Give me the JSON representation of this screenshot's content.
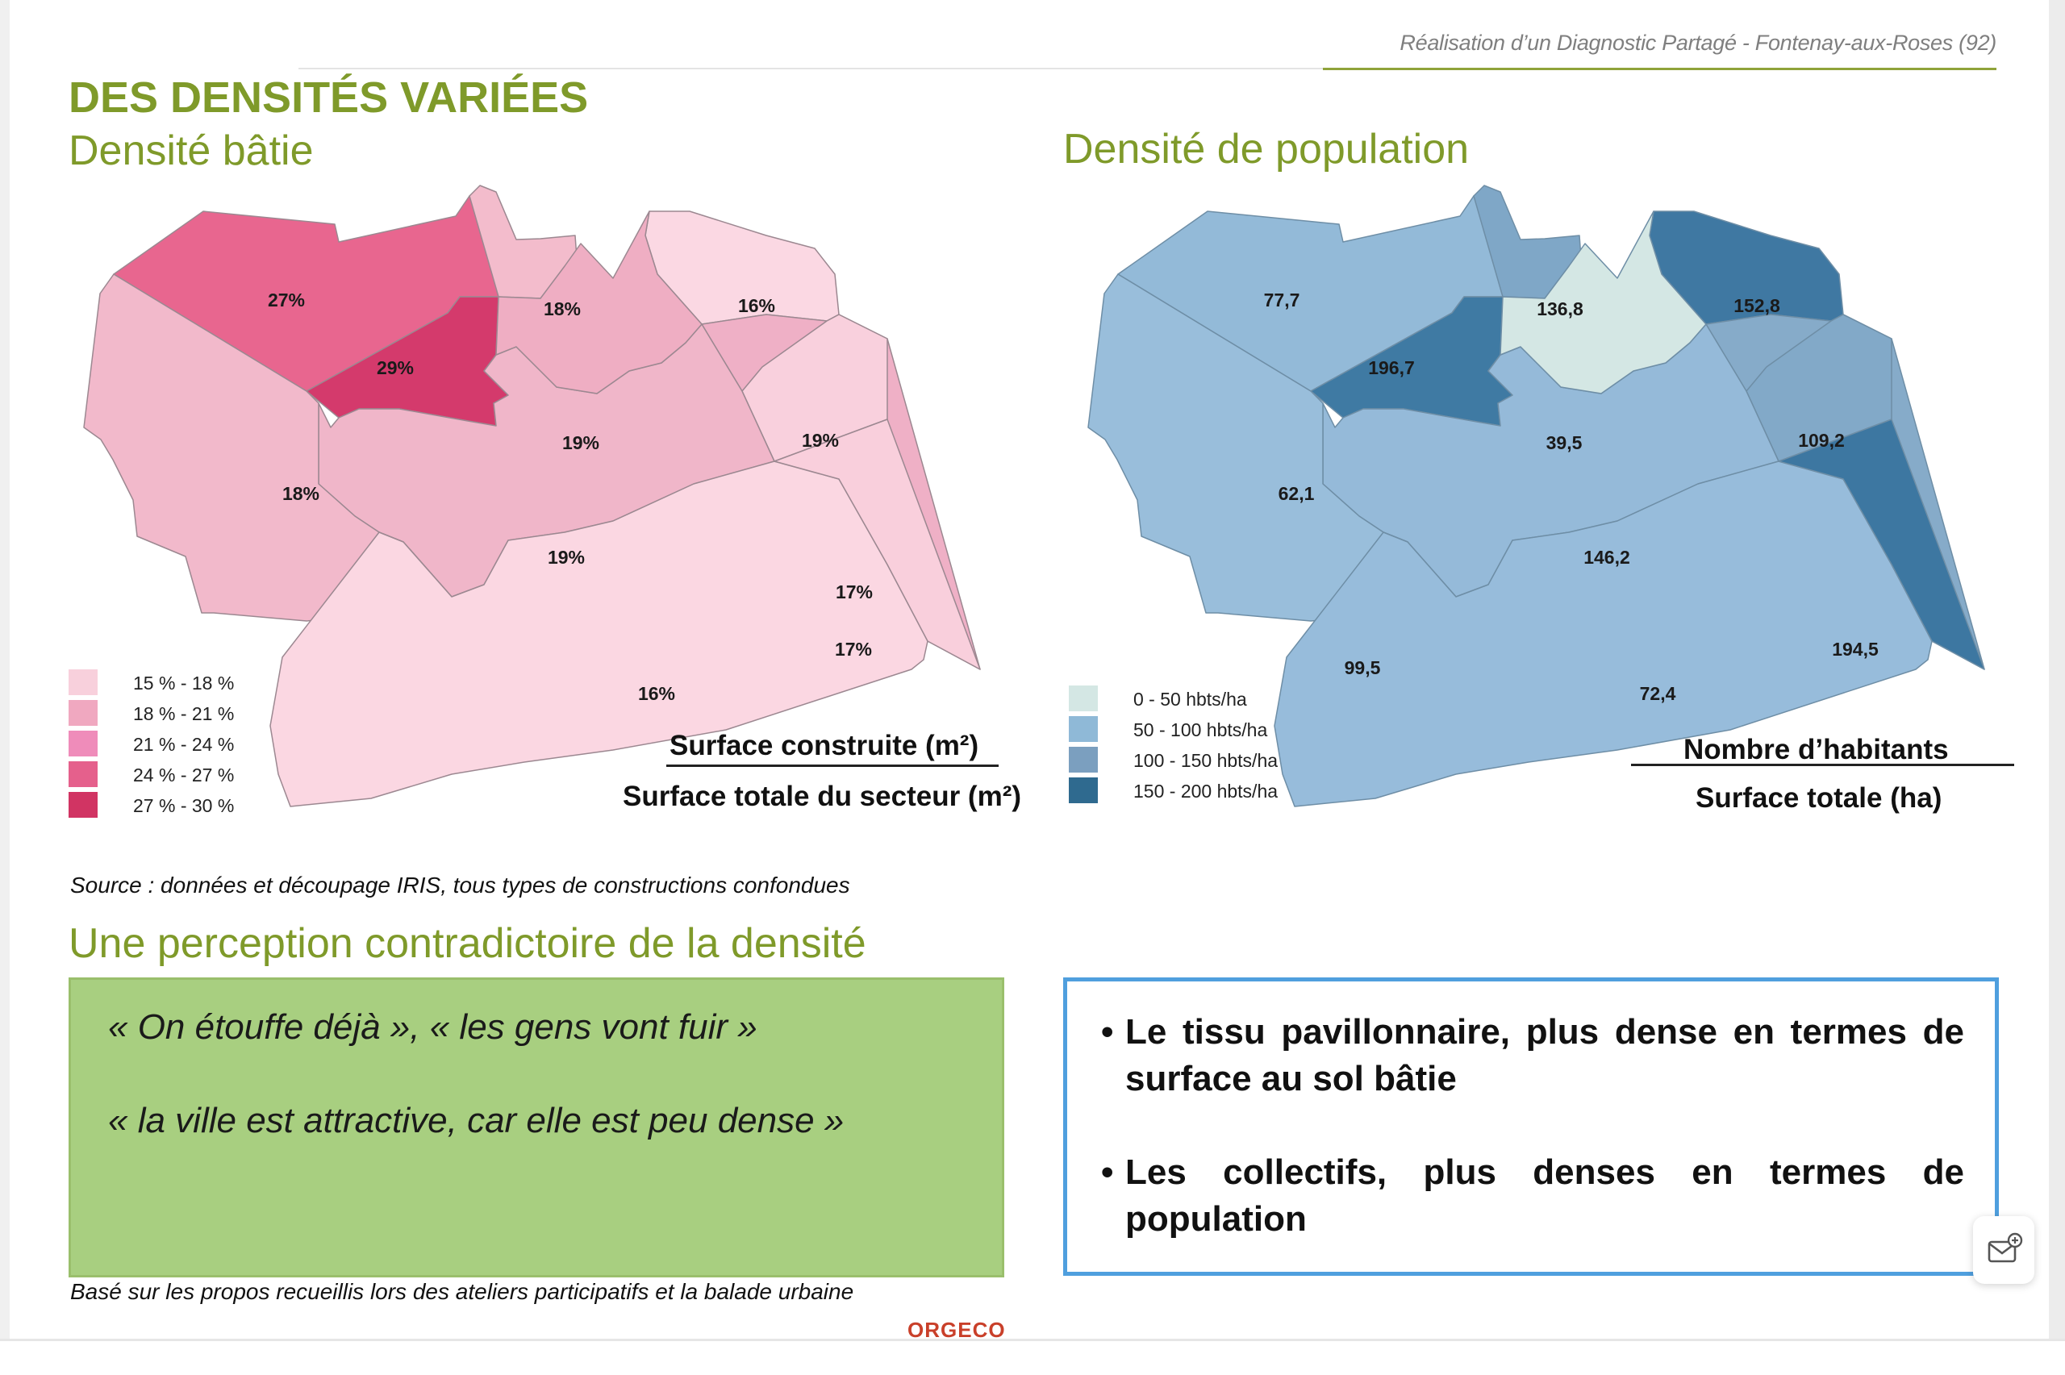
{
  "header": {
    "reference": "Réalisation d’un Diagnostic Partagé - Fontenay-aux-Roses (92)"
  },
  "main_title": "DES DENSITÉS VARIÉES",
  "built_density": {
    "title": "Densité bâtie",
    "zones": [
      {
        "label": "27%",
        "value_pct": 27,
        "color": "#e8668f"
      },
      {
        "label": "29%",
        "value_pct": 29,
        "color": "#d43a6c"
      },
      {
        "label": "18%",
        "value_pct": 18,
        "color": "#f3bccc"
      },
      {
        "label": "16%",
        "value_pct": 16,
        "color": "#fbd8e3"
      },
      {
        "label": "19%",
        "value_pct": 19,
        "color": "#efb0c6"
      },
      {
        "label": "17%",
        "value_pct": 17,
        "color": "#f9d0dd"
      },
      {
        "label": "19%",
        "value_pct": 19,
        "color": "#f0b6c9"
      },
      {
        "label": "19%",
        "value_pct": 19,
        "color": "#efaec3"
      },
      {
        "label": "18%",
        "value_pct": 18,
        "color": "#f2b9cb"
      },
      {
        "label": "16%",
        "value_pct": 16,
        "color": "#fbd7e2"
      },
      {
        "label": "17%",
        "value_pct": 17,
        "color": "#f9cfdc"
      }
    ],
    "legend": [
      {
        "label": "15 % - 18 %",
        "color": "#f8d0dc"
      },
      {
        "label": "18 % - 21 %",
        "color": "#f0a8c0"
      },
      {
        "label": "21 % - 24 %",
        "color": "#ef8cba"
      },
      {
        "label": "24 % - 27 %",
        "color": "#e5608c"
      },
      {
        "label": "27 % - 30 %",
        "color": "#d13463"
      }
    ],
    "formula_numerator": "Surface construite (m²)",
    "formula_denominator": "Surface totale du secteur (m²)"
  },
  "population_density": {
    "title": "Densité de population",
    "zones": [
      {
        "label": "77,7",
        "value": 77.7,
        "color": "#93bad8"
      },
      {
        "label": "196,7",
        "value": 196.7,
        "color": "#3f7aa3"
      },
      {
        "label": "136,8",
        "value": 136.8,
        "color": "#7fa7c7"
      },
      {
        "label": "152,8",
        "value": 152.8,
        "color": "#3f78a2"
      },
      {
        "label": "39,5",
        "value": 39.5,
        "color": "#d4e7e4"
      },
      {
        "label": "109,2",
        "value": 109.2,
        "color": "#86abc9"
      },
      {
        "label": "146,2",
        "value": 146.2,
        "color": "#82a9c8"
      },
      {
        "label": "62,1",
        "value": 62.1,
        "color": "#97bcdb"
      },
      {
        "label": "99,5",
        "value": 99.5,
        "color": "#95bad9"
      },
      {
        "label": "72,4",
        "value": 72.4,
        "color": "#99bedb"
      },
      {
        "label": "194,5",
        "value": 194.5,
        "color": "#3d77a1"
      }
    ],
    "legend": [
      {
        "label": "0 - 50 hbts/ha",
        "color": "#d4e7e4"
      },
      {
        "label": "50 - 100 hbts/ha",
        "color": "#8fb9d7"
      },
      {
        "label": "100 - 150 hbts/ha",
        "color": "#7b9fbf"
      },
      {
        "label": "150 - 200 hbts/ha",
        "color": "#2f6a8f"
      }
    ],
    "formula_numerator": "Nombre d’habitants",
    "formula_denominator": "Surface totale (ha)"
  },
  "source_note": "Source : données et découpage IRIS, tous types de constructions confondues",
  "perception_title": "Une perception contradictoire de la densité",
  "quotes": [
    "« On étouffe déjà », « les gens vont fuir »",
    "« la ville est attractive, car elle est peu dense »"
  ],
  "bullets": [
    "Le tissu pavillonnaire, plus dense en termes de surface au sol bâtie",
    "Les collectifs, plus denses en termes de population"
  ],
  "bullet_marker": "•",
  "footnote": "Basé sur les propos recueillis lors des ateliers participatifs et la balade urbaine",
  "logo_text": "ORGECO",
  "float_button_icon": "mail-add-icon"
}
